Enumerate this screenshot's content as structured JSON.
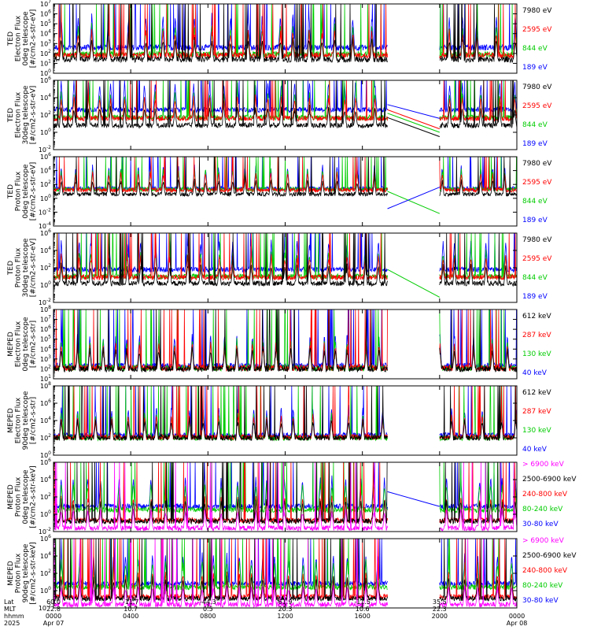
{
  "chart_data": [
    {
      "type": "line",
      "ylabel": [
        "TED",
        "Electron Flux",
        "0deg telescope",
        "[#/cm2-s-str-eV]"
      ],
      "yscale": "log",
      "ylim_exp": [
        0,
        7
      ],
      "ytick_labels": [
        "10^0",
        "10^1",
        "10^2",
        "10^3",
        "10^4",
        "10^5",
        "10^6",
        "10^7"
      ],
      "series": [
        {
          "name": "7980 eV",
          "color": "#000000"
        },
        {
          "name": "2595 eV",
          "color": "#ff0000"
        },
        {
          "name": "844 eV",
          "color": "#00cc00"
        },
        {
          "name": "189 eV",
          "color": "#0000ff"
        }
      ],
      "levels_exp": [
        1.4,
        1.8,
        1.9,
        2.6
      ],
      "gap_lines": []
    },
    {
      "type": "line",
      "ylabel": [
        "TED",
        "Electron Flux",
        "30deg telescope",
        "[#/cm2-s-str-eV]"
      ],
      "yscale": "log",
      "ylim_exp": [
        -2,
        6
      ],
      "ytick_labels": [
        "10^-2",
        "10^0",
        "10^2",
        "10^4",
        "10^6"
      ],
      "series": [
        {
          "name": "7980 eV",
          "color": "#000000"
        },
        {
          "name": "2595 eV",
          "color": "#ff0000"
        },
        {
          "name": "844 eV",
          "color": "#00cc00"
        },
        {
          "name": "189 eV",
          "color": "#0000ff"
        }
      ],
      "levels_exp": [
        0.8,
        1.6,
        1.7,
        2.6
      ],
      "gap_lines": [
        {
          "color": "#0000ff",
          "from": 3.2,
          "to": 1.6
        },
        {
          "color": "#ff0000",
          "from": 2.6,
          "to": 0.4
        },
        {
          "color": "#00cc00",
          "from": 2.2,
          "to": 0.0
        },
        {
          "color": "#000000",
          "from": 1.7,
          "to": -0.5
        }
      ]
    },
    {
      "type": "line",
      "ylabel": [
        "TED",
        "Proton Flux",
        "0deg telescope",
        "[#/cm2-s-str-eV]"
      ],
      "yscale": "log",
      "ylim_exp": [
        -4,
        6
      ],
      "ytick_labels": [
        "10^-4",
        "10^-2",
        "10^0",
        "10^2",
        "10^4",
        "10^6"
      ],
      "series": [
        {
          "name": "7980 eV",
          "color": "#000000"
        },
        {
          "name": "2595 eV",
          "color": "#ff0000"
        },
        {
          "name": "844 eV",
          "color": "#00cc00"
        },
        {
          "name": "189 eV",
          "color": "#0000ff"
        }
      ],
      "levels_exp": [
        0.6,
        1.2,
        1.3,
        1.4
      ],
      "gap_lines": [
        {
          "color": "#00cc00",
          "from": 1.0,
          "to": -2.2
        },
        {
          "color": "#0000ff",
          "from": -1.5,
          "to": 1.6
        }
      ]
    },
    {
      "type": "line",
      "ylabel": [
        "TED",
        "Proton Flux",
        "30deg telescope",
        "[#/cm2-s-str-eV]"
      ],
      "yscale": "log",
      "ylim_exp": [
        -2,
        6
      ],
      "ytick_labels": [
        "10^-2",
        "10^0",
        "10^2",
        "10^4",
        "10^6"
      ],
      "series": [
        {
          "name": "7980 eV",
          "color": "#000000"
        },
        {
          "name": "2595 eV",
          "color": "#ff0000"
        },
        {
          "name": "844 eV",
          "color": "#00cc00"
        },
        {
          "name": "189 eV",
          "color": "#0000ff"
        }
      ],
      "levels_exp": [
        0.2,
        0.9,
        1.0,
        1.8
      ],
      "gap_lines": [
        {
          "color": "#00cc00",
          "from": 1.8,
          "to": -1.4
        }
      ]
    },
    {
      "type": "line",
      "ylabel": [
        "MEPED",
        "Electron Flux",
        "0deg telescope",
        "[#/cm2-s-str]"
      ],
      "yscale": "log",
      "ylim_exp": [
        1,
        8
      ],
      "ytick_labels": [
        "10^1",
        "10^2",
        "10^3",
        "10^4",
        "10^5",
        "10^6",
        "10^7",
        "10^8"
      ],
      "series": [
        {
          "name": "612 keV",
          "color": "#000000"
        },
        {
          "name": "287 keV",
          "color": "#ff0000"
        },
        {
          "name": "130 keV",
          "color": "#00cc00"
        },
        {
          "name": "40 keV",
          "color": "#0000ff"
        }
      ],
      "levels_exp": [
        2.0,
        2.1,
        2.1,
        2.3
      ],
      "gap_lines": []
    },
    {
      "type": "line",
      "ylabel": [
        "MEPED",
        "Electron Flux",
        "90deg telescope",
        "[#/cm2-s-str]"
      ],
      "yscale": "log",
      "ylim_exp": [
        0,
        8
      ],
      "ytick_labels": [
        "10^0",
        "10^2",
        "10^4",
        "10^6",
        "10^8"
      ],
      "series": [
        {
          "name": "612 keV",
          "color": "#000000"
        },
        {
          "name": "287 keV",
          "color": "#ff0000"
        },
        {
          "name": "130 keV",
          "color": "#00cc00"
        },
        {
          "name": "40 keV",
          "color": "#0000ff"
        }
      ],
      "levels_exp": [
        2.0,
        2.1,
        2.0,
        2.3
      ],
      "gap_lines": []
    },
    {
      "type": "line",
      "ylabel": [
        "MEPED",
        "Proton Flux",
        "0deg telescope",
        "[#/cm2-s-str-keV]"
      ],
      "yscale": "log",
      "ylim_exp": [
        -2,
        6
      ],
      "ytick_labels": [
        "10^-2",
        "10^0",
        "10^2",
        "10^4",
        "10^6"
      ],
      "series": [
        {
          "name": "> 6900 keV",
          "color": "#ff00ff"
        },
        {
          "name": "2500-6900 keV",
          "color": "#000000"
        },
        {
          "name": "240-800 keV",
          "color": "#ff0000"
        },
        {
          "name": "80-240 keV",
          "color": "#00cc00"
        },
        {
          "name": "30-80 keV",
          "color": "#0000ff"
        }
      ],
      "levels_exp": [
        -1.6,
        -0.8,
        -0.7,
        0.5,
        0.9
      ],
      "gap_lines": [
        {
          "color": "#0000ff",
          "from": 2.6,
          "to": 0.9
        }
      ]
    },
    {
      "type": "line",
      "ylabel": [
        "MEPED",
        "Proton Flux",
        "90deg telescope",
        "[#/cm2-s-str-keV]"
      ],
      "yscale": "log",
      "ylim_exp": [
        -2,
        6
      ],
      "ytick_labels": [
        "10^-2",
        "10^0",
        "10^2",
        "10^4",
        "10^6"
      ],
      "series": [
        {
          "name": "> 6900 keV",
          "color": "#ff00ff"
        },
        {
          "name": "2500-6900 keV",
          "color": "#000000"
        },
        {
          "name": "240-800 keV",
          "color": "#ff0000"
        },
        {
          "name": "80-240 keV",
          "color": "#00cc00"
        },
        {
          "name": "30-80 keV",
          "color": "#0000ff"
        }
      ],
      "levels_exp": [
        -1.6,
        -0.9,
        -0.7,
        0.4,
        0.8
      ],
      "gap_lines": []
    }
  ],
  "x_axis": {
    "row_labels": [
      "Lat",
      "MLT",
      "hhmm",
      "2025"
    ],
    "ticks": [
      {
        "hours": 0,
        "lat": "60.0",
        "mlt": "22.8",
        "hhmm": "0000",
        "date": "Apr 07"
      },
      {
        "hours": 4,
        "lat": "-11.7",
        "mlt": "10.7",
        "hhmm": "0400",
        "date": ""
      },
      {
        "hours": 8,
        "lat": "-44.3",
        "mlt": "0.5",
        "hhmm": "0800",
        "date": ""
      },
      {
        "hours": 12,
        "lat": "61.9",
        "mlt": "20.3",
        "hhmm": "1200",
        "date": ""
      },
      {
        "hours": 16,
        "lat": "-11.5",
        "mlt": "10.6",
        "hhmm": "1600",
        "date": ""
      },
      {
        "hours": 20,
        "lat": "35.5",
        "mlt": "22.3",
        "hhmm": "2000",
        "date": ""
      },
      {
        "hours": 24,
        "lat": "",
        "mlt": "",
        "hhmm": "0000",
        "date": "Apr 08"
      }
    ],
    "xlim_hours": [
      0,
      24
    ],
    "data_gap_hours": [
      17.3,
      20.0
    ]
  }
}
